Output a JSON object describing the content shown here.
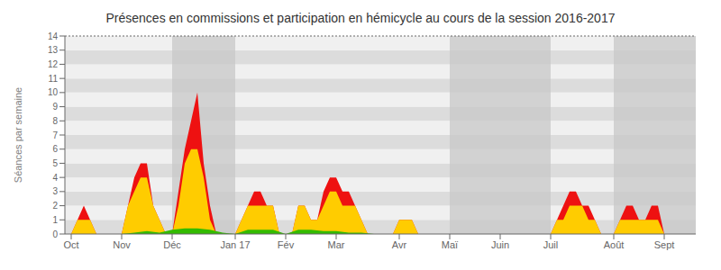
{
  "chart_data": {
    "type": "area",
    "title": "Présences en commissions et participation en hémicycle au cours de la session 2016-2017",
    "ylabel": "Séances par semaine",
    "xlim": [
      -0.5,
      49.5
    ],
    "xticks": [
      {
        "value": 0,
        "label": "Oct"
      },
      {
        "value": 4,
        "label": "Nov"
      },
      {
        "value": 8,
        "label": "Déc"
      },
      {
        "value": 13,
        "label": "Jan 17"
      },
      {
        "value": 17,
        "label": "Fév"
      },
      {
        "value": 21,
        "label": "Mar"
      },
      {
        "value": 26,
        "label": "Avr"
      },
      {
        "value": 30,
        "label": "Maï"
      },
      {
        "value": 34,
        "label": "Juin"
      },
      {
        "value": 38,
        "label": "Juil"
      },
      {
        "value": 43,
        "label": "Août"
      },
      {
        "value": 47,
        "label": "Sept"
      }
    ],
    "ylim": [
      0,
      14
    ],
    "yticks": [
      0,
      1,
      2,
      3,
      4,
      5,
      6,
      7,
      8,
      9,
      10,
      11,
      12,
      13,
      14
    ],
    "grid": true,
    "reference_line_y": 14,
    "shaded_regions": {
      "color": "#c8c8c8",
      "spans": [
        [
          8.0,
          13.0
        ],
        [
          30.0,
          34.0
        ],
        [
          34.0,
          38.0
        ],
        [
          43.0,
          49.5
        ]
      ]
    },
    "series": [
      {
        "color": "#ee1111",
        "x": [
          0,
          0.5,
          1,
          1.5,
          2,
          2.5,
          3,
          3.5,
          4,
          4.5,
          5,
          5.5,
          6,
          6.5,
          7,
          7.5,
          8,
          8.5,
          9,
          9.5,
          10,
          10.5,
          11,
          11.5,
          12,
          12.5,
          13,
          13.5,
          14,
          14.5,
          15,
          15.5,
          16,
          16.5,
          17,
          17.5,
          18,
          18.5,
          19,
          19.5,
          20,
          20.5,
          21,
          21.5,
          22,
          22.5,
          23,
          23.5,
          24,
          24.5,
          25,
          25.5,
          26,
          26.5,
          27,
          27.5,
          28,
          28.5,
          29,
          29.5,
          30,
          30.5,
          31,
          31.5,
          32,
          32.5,
          33,
          33.5,
          34,
          34.5,
          35,
          35.5,
          36,
          36.5,
          37,
          37.5,
          38,
          38.5,
          39,
          39.5,
          40,
          40.5,
          41,
          41.5,
          42,
          42.5,
          43,
          43.5,
          44,
          44.5,
          45,
          45.5,
          46,
          46.5,
          47,
          47.5,
          48,
          48.5,
          49
        ],
        "values": [
          0,
          1,
          2,
          1,
          0,
          0,
          0,
          0,
          0,
          2,
          4,
          5,
          5,
          2,
          1,
          0,
          0,
          3,
          6,
          8,
          10,
          5,
          2,
          0,
          0,
          0,
          0,
          1,
          2,
          3,
          3,
          2,
          2,
          0,
          0,
          0,
          2,
          2,
          1,
          1,
          3,
          4,
          4,
          3,
          3,
          2,
          1,
          0,
          0,
          0,
          0,
          0,
          1,
          1,
          1,
          0,
          0,
          0,
          0,
          0,
          0,
          0,
          0,
          0,
          0,
          0,
          0,
          0,
          0,
          0,
          0,
          0,
          0,
          0,
          0,
          0,
          0,
          1,
          2,
          3,
          3,
          2,
          2,
          1,
          0,
          0,
          0,
          1,
          2,
          2,
          1,
          1,
          2,
          2,
          0,
          0,
          0,
          0,
          0
        ]
      },
      {
        "color": "#ffcc00",
        "x": [
          0,
          0.5,
          1,
          1.5,
          2,
          2.5,
          3,
          3.5,
          4,
          4.5,
          5,
          5.5,
          6,
          6.5,
          7,
          7.5,
          8,
          8.5,
          9,
          9.5,
          10,
          10.5,
          11,
          11.5,
          12,
          12.5,
          13,
          13.5,
          14,
          14.5,
          15,
          15.5,
          16,
          16.5,
          17,
          17.5,
          18,
          18.5,
          19,
          19.5,
          20,
          20.5,
          21,
          21.5,
          22,
          22.5,
          23,
          23.5,
          24,
          24.5,
          25,
          25.5,
          26,
          26.5,
          27,
          27.5,
          28,
          28.5,
          29,
          29.5,
          30,
          30.5,
          31,
          31.5,
          32,
          32.5,
          33,
          33.5,
          34,
          34.5,
          35,
          35.5,
          36,
          36.5,
          37,
          37.5,
          38,
          38.5,
          39,
          39.5,
          40,
          40.5,
          41,
          41.5,
          42,
          42.5,
          43,
          43.5,
          44,
          44.5,
          45,
          45.5,
          46,
          46.5,
          47,
          47.5,
          48,
          48.5,
          49
        ],
        "values": [
          0,
          1,
          1,
          1,
          0,
          0,
          0,
          0,
          0,
          2,
          3,
          4,
          4,
          2,
          1,
          0,
          0,
          2,
          5,
          6,
          6,
          4,
          1,
          0,
          0,
          0,
          0,
          1,
          2,
          2,
          2,
          2,
          2,
          0,
          0,
          0,
          2,
          2,
          1,
          1,
          2,
          3,
          3,
          2,
          2,
          2,
          1,
          0,
          0,
          0,
          0,
          0,
          1,
          1,
          1,
          0,
          0,
          0,
          0,
          0,
          0,
          0,
          0,
          0,
          0,
          0,
          0,
          0,
          0,
          0,
          0,
          0,
          0,
          0,
          0,
          0,
          0,
          1,
          1,
          2,
          2,
          2,
          1,
          1,
          0,
          0,
          0,
          1,
          1,
          1,
          1,
          1,
          1,
          1,
          0,
          0,
          0,
          0,
          0
        ]
      },
      {
        "color": "#33bb00",
        "x": [
          0,
          1,
          2,
          3,
          4,
          5,
          6,
          7,
          8,
          9,
          10,
          11,
          12,
          13,
          14,
          15,
          16,
          17,
          18,
          19,
          20,
          21,
          22,
          23,
          24,
          25,
          26,
          27,
          28,
          29,
          30,
          31,
          32,
          33,
          34,
          35,
          36,
          37,
          38,
          39,
          40,
          41,
          42,
          43,
          44,
          45,
          46,
          47,
          48,
          49
        ],
        "values": [
          0,
          0,
          0,
          0,
          0,
          0.1,
          0.2,
          0.1,
          0.3,
          0.4,
          0.4,
          0.3,
          0.1,
          0,
          0.3,
          0.3,
          0.3,
          0,
          0.3,
          0.3,
          0.2,
          0.2,
          0.1,
          0.1,
          0,
          0,
          0,
          0,
          0,
          0,
          0,
          0,
          0,
          0,
          0,
          0,
          0,
          0,
          0,
          0,
          0,
          0,
          0,
          0,
          0,
          0,
          0,
          0,
          0,
          0
        ]
      }
    ]
  }
}
